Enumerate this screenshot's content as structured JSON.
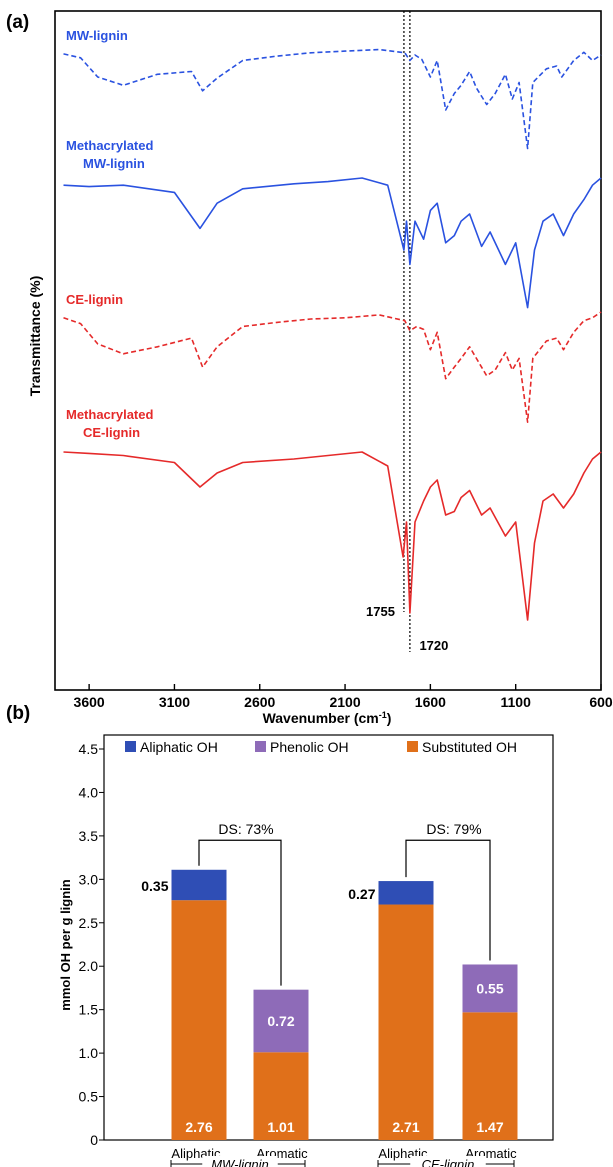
{
  "chart_data": [
    {
      "type": "line",
      "panel_label": "(a)",
      "xlabel": "Wavenumber (cm",
      "xlabel_sup": "-1",
      "xlabel_close": ")",
      "ylabel": "Transmittance (%)",
      "xlim": [
        3800,
        600
      ],
      "x_ticks": [
        3600,
        3100,
        2600,
        2100,
        1600,
        1100,
        600
      ],
      "reference_lines": [
        {
          "x": 1755,
          "label": "1755"
        },
        {
          "x": 1720,
          "label": "1720"
        }
      ],
      "series": [
        {
          "name": "MW-lignin",
          "label_lines": [
            "MW-lignin"
          ],
          "color": "#2a52e0",
          "dash": true,
          "points": [
            [
              3750,
              0.18
            ],
            [
              3650,
              0.25
            ],
            [
              3550,
              0.6
            ],
            [
              3400,
              0.75
            ],
            [
              3200,
              0.55
            ],
            [
              3000,
              0.5
            ],
            [
              2935,
              0.85
            ],
            [
              2850,
              0.62
            ],
            [
              2700,
              0.3
            ],
            [
              2500,
              0.22
            ],
            [
              2300,
              0.16
            ],
            [
              2100,
              0.13
            ],
            [
              1900,
              0.1
            ],
            [
              1750,
              0.16
            ],
            [
              1720,
              0.3
            ],
            [
              1690,
              0.2
            ],
            [
              1650,
              0.28
            ],
            [
              1600,
              0.6
            ],
            [
              1560,
              0.3
            ],
            [
              1510,
              1.2
            ],
            [
              1460,
              0.9
            ],
            [
              1420,
              0.75
            ],
            [
              1370,
              0.5
            ],
            [
              1330,
              0.8
            ],
            [
              1270,
              1.1
            ],
            [
              1220,
              0.9
            ],
            [
              1160,
              0.55
            ],
            [
              1120,
              1.0
            ],
            [
              1080,
              0.7
            ],
            [
              1030,
              1.9
            ],
            [
              1000,
              0.7
            ],
            [
              920,
              0.45
            ],
            [
              860,
              0.4
            ],
            [
              830,
              0.6
            ],
            [
              760,
              0.3
            ],
            [
              700,
              0.15
            ],
            [
              650,
              0.3
            ],
            [
              600,
              0.2
            ]
          ]
        },
        {
          "name": "Methacrylated MW-lignin",
          "label_lines": [
            "Methacrylated",
            "MW-lignin"
          ],
          "color": "#2a52e0",
          "dash": false,
          "points": [
            [
              3750,
              0.1
            ],
            [
              3600,
              0.12
            ],
            [
              3400,
              0.1
            ],
            [
              3100,
              0.2
            ],
            [
              2950,
              0.7
            ],
            [
              2850,
              0.35
            ],
            [
              2700,
              0.15
            ],
            [
              2400,
              0.08
            ],
            [
              2200,
              0.05
            ],
            [
              2000,
              0.0
            ],
            [
              1850,
              0.1
            ],
            [
              1755,
              1.0
            ],
            [
              1740,
              0.6
            ],
            [
              1720,
              1.2
            ],
            [
              1690,
              0.6
            ],
            [
              1640,
              0.85
            ],
            [
              1600,
              0.45
            ],
            [
              1560,
              0.35
            ],
            [
              1510,
              0.9
            ],
            [
              1460,
              0.8
            ],
            [
              1420,
              0.6
            ],
            [
              1370,
              0.5
            ],
            [
              1300,
              0.95
            ],
            [
              1250,
              0.75
            ],
            [
              1160,
              1.2
            ],
            [
              1100,
              0.9
            ],
            [
              1030,
              1.8
            ],
            [
              990,
              1.0
            ],
            [
              940,
              0.6
            ],
            [
              880,
              0.5
            ],
            [
              820,
              0.8
            ],
            [
              760,
              0.5
            ],
            [
              700,
              0.3
            ],
            [
              650,
              0.1
            ],
            [
              600,
              0.0
            ]
          ]
        },
        {
          "name": "CE-lignin",
          "label_lines": [
            "CE-lignin"
          ],
          "color": "#e52a2a",
          "dash": true,
          "points": [
            [
              3750,
              0.1
            ],
            [
              3650,
              0.2
            ],
            [
              3550,
              0.55
            ],
            [
              3400,
              0.72
            ],
            [
              3200,
              0.6
            ],
            [
              3000,
              0.45
            ],
            [
              2935,
              0.95
            ],
            [
              2850,
              0.6
            ],
            [
              2700,
              0.25
            ],
            [
              2500,
              0.18
            ],
            [
              2300,
              0.12
            ],
            [
              2100,
              0.1
            ],
            [
              1900,
              0.05
            ],
            [
              1750,
              0.15
            ],
            [
              1720,
              0.32
            ],
            [
              1680,
              0.25
            ],
            [
              1640,
              0.3
            ],
            [
              1600,
              0.65
            ],
            [
              1560,
              0.35
            ],
            [
              1510,
              1.15
            ],
            [
              1460,
              0.95
            ],
            [
              1420,
              0.8
            ],
            [
              1370,
              0.6
            ],
            [
              1330,
              0.8
            ],
            [
              1270,
              1.1
            ],
            [
              1220,
              1.0
            ],
            [
              1160,
              0.7
            ],
            [
              1120,
              1.0
            ],
            [
              1080,
              0.8
            ],
            [
              1030,
              1.9
            ],
            [
              1000,
              0.8
            ],
            [
              920,
              0.5
            ],
            [
              860,
              0.45
            ],
            [
              820,
              0.65
            ],
            [
              760,
              0.35
            ],
            [
              700,
              0.15
            ],
            [
              650,
              0.1
            ],
            [
              600,
              0.0
            ]
          ]
        },
        {
          "name": "Methacrylated CE-lignin",
          "label_lines": [
            "Methacrylated",
            "CE-lignin"
          ],
          "color": "#e52a2a",
          "dash": false,
          "points": [
            [
              3750,
              0.0
            ],
            [
              3600,
              0.02
            ],
            [
              3400,
              0.05
            ],
            [
              3100,
              0.15
            ],
            [
              2950,
              0.5
            ],
            [
              2850,
              0.3
            ],
            [
              2700,
              0.15
            ],
            [
              2400,
              0.1
            ],
            [
              2200,
              0.05
            ],
            [
              2000,
              0.0
            ],
            [
              1850,
              0.2
            ],
            [
              1760,
              1.5
            ],
            [
              1740,
              1.0
            ],
            [
              1720,
              2.3
            ],
            [
              1690,
              1.0
            ],
            [
              1640,
              0.7
            ],
            [
              1600,
              0.5
            ],
            [
              1560,
              0.4
            ],
            [
              1510,
              0.9
            ],
            [
              1460,
              0.85
            ],
            [
              1420,
              0.65
            ],
            [
              1370,
              0.55
            ],
            [
              1300,
              0.9
            ],
            [
              1250,
              0.8
            ],
            [
              1160,
              1.2
            ],
            [
              1100,
              1.0
            ],
            [
              1030,
              2.4
            ],
            [
              990,
              1.3
            ],
            [
              940,
              0.7
            ],
            [
              880,
              0.6
            ],
            [
              820,
              0.8
            ],
            [
              760,
              0.6
            ],
            [
              700,
              0.3
            ],
            [
              650,
              0.1
            ],
            [
              600,
              0.0
            ]
          ]
        }
      ]
    },
    {
      "type": "bar",
      "panel_label": "(b)",
      "ylabel": "mmol OH per g lignin",
      "ylim": [
        0,
        4.5
      ],
      "y_ticks": [
        "0",
        "0.5",
        "1.0",
        "1.5",
        "2.0",
        "2.5",
        "3.0",
        "3.5",
        "4.0",
        "4.5"
      ],
      "legend_position": "top",
      "legend": [
        {
          "name": "Aliphatic OH",
          "color": "#2f4eb5"
        },
        {
          "name": "Phenolic OH",
          "color": "#8e6bb8"
        },
        {
          "name": "Substituted OH",
          "color": "#e0701a"
        }
      ],
      "groups": [
        {
          "name": "MW-lignin",
          "ds_label": "DS: 73%",
          "bars": [
            {
              "category": "Aliphatic",
              "segments": [
                {
                  "series": "Substituted OH",
                  "value": 2.76,
                  "label": "2.76"
                },
                {
                  "series": "Aliphatic OH",
                  "value": 0.35,
                  "label": "0.35",
                  "label_side": "left"
                }
              ]
            },
            {
              "category": "Aromatic",
              "segments": [
                {
                  "series": "Substituted OH",
                  "value": 1.01,
                  "label": "1.01"
                },
                {
                  "series": "Phenolic OH",
                  "value": 0.72,
                  "label": "0.72"
                }
              ]
            }
          ]
        },
        {
          "name": "CE-lignin",
          "ds_label": "DS: 79%",
          "bars": [
            {
              "category": "Aliphatic",
              "segments": [
                {
                  "series": "Substituted OH",
                  "value": 2.71,
                  "label": "2.71"
                },
                {
                  "series": "Aliphatic OH",
                  "value": 0.27,
                  "label": "0.27",
                  "label_side": "left"
                }
              ]
            },
            {
              "category": "Aromatic",
              "segments": [
                {
                  "series": "Substituted OH",
                  "value": 1.47,
                  "label": "1.47"
                },
                {
                  "series": "Phenolic OH",
                  "value": 0.55,
                  "label": "0.55"
                }
              ]
            }
          ]
        }
      ]
    }
  ]
}
